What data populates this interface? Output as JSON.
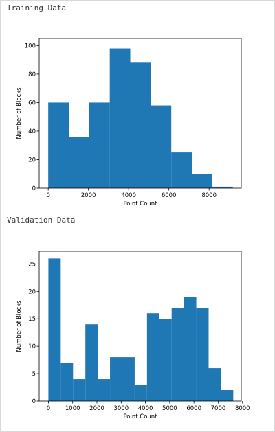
{
  "sections": [
    {
      "title": "Training Data"
    },
    {
      "title": "Validation Data"
    }
  ],
  "chart_data": [
    {
      "type": "bar",
      "title": "",
      "xlabel": "Point Count",
      "ylabel": "Number of Blocks",
      "xlim": [
        -450,
        9600
      ],
      "ylim": [
        0,
        105
      ],
      "xticks": [
        0,
        2000,
        4000,
        6000,
        8000
      ],
      "yticks": [
        0,
        20,
        40,
        60,
        80,
        100
      ],
      "bin_edges": [
        0,
        1020,
        2040,
        3060,
        4080,
        5100,
        6120,
        7140,
        8160,
        9180
      ],
      "values": [
        60,
        36,
        60,
        98,
        88,
        58,
        25,
        10,
        1
      ],
      "color": "#1f77b4",
      "grid": false
    },
    {
      "type": "bar",
      "title": "",
      "xlabel": "Point Count",
      "ylabel": "Number of Blocks",
      "xlim": [
        -380,
        7950
      ],
      "ylim": [
        0,
        27.3
      ],
      "xticks": [
        0,
        1000,
        2000,
        3000,
        4000,
        5000,
        6000,
        7000,
        8000
      ],
      "yticks": [
        0,
        5,
        10,
        15,
        20,
        25
      ],
      "bin_edges": [
        0,
        508,
        1016,
        1524,
        2032,
        2540,
        3048,
        3556,
        4064,
        4572,
        5080,
        5588,
        6096,
        6604,
        7112,
        7620
      ],
      "values": [
        26,
        7,
        4,
        14,
        4,
        8,
        8,
        3,
        16,
        15,
        17,
        19,
        17,
        6,
        2
      ],
      "color": "#1f77b4",
      "grid": false
    }
  ]
}
